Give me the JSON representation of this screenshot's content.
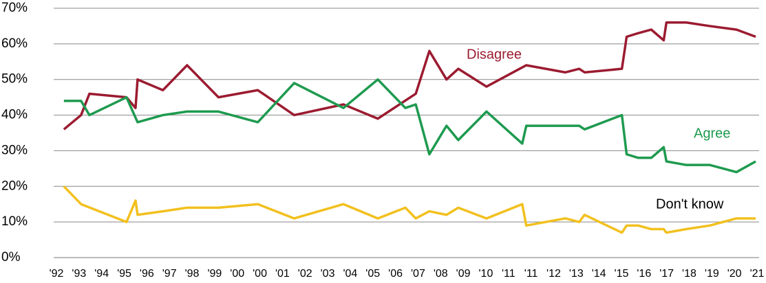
{
  "chart_data": {
    "type": "line",
    "series": [
      {
        "name": "Disagree",
        "color": "#9b1b30",
        "x": [
          0.33,
          1.09,
          1.46,
          3.1,
          3.5,
          3.59,
          4.71,
          5.78,
          7.17,
          8.91,
          10.52,
          12.7,
          14.22,
          15.9,
          16.5,
          17.26,
          17.78,
          19.03,
          20.79,
          22.52,
          23.13,
          23.37,
          25.02,
          25.23,
          25.74,
          26.32,
          26.87,
          26.99,
          27.87,
          28.91,
          30.09,
          30.94
        ],
        "values": [
          36,
          40,
          46,
          45,
          42,
          50,
          47,
          54,
          45,
          47,
          40,
          43,
          39,
          46,
          58,
          50,
          53,
          48,
          54,
          52,
          53,
          52,
          53,
          62,
          63,
          64,
          61,
          66,
          66,
          65,
          64,
          62
        ]
      },
      {
        "name": "Agree",
        "color": "#1e9a4f",
        "x": [
          0.33,
          1.09,
          1.46,
          3.1,
          3.59,
          4.71,
          5.78,
          7.17,
          8.91,
          10.52,
          12.7,
          14.22,
          15.44,
          15.9,
          16.5,
          17.26,
          17.78,
          19.03,
          20.61,
          20.79,
          23.13,
          23.37,
          25.02,
          25.23,
          25.74,
          26.32,
          26.87,
          26.99,
          27.87,
          28.91,
          30.09,
          30.94
        ],
        "values": [
          44,
          44,
          40,
          45,
          38,
          40,
          41,
          41,
          38,
          49,
          42,
          50,
          42,
          43,
          29,
          37,
          33,
          41,
          32,
          37,
          37,
          36,
          40,
          29,
          28,
          28,
          31,
          27,
          26,
          26,
          24,
          27
        ]
      },
      {
        "name": "Don't know",
        "color": "#f2c01e",
        "x": [
          0.33,
          1.09,
          3.1,
          3.5,
          3.59,
          4.71,
          5.78,
          7.17,
          8.91,
          10.52,
          12.7,
          14.22,
          15.44,
          15.9,
          16.5,
          17.26,
          17.78,
          19.03,
          20.61,
          20.79,
          22.52,
          23.13,
          23.37,
          25.02,
          25.23,
          25.74,
          26.32,
          26.87,
          26.99,
          27.87,
          28.91,
          30.09,
          30.94
        ],
        "values": [
          20,
          15,
          10,
          16,
          12,
          13,
          14,
          14,
          15,
          11,
          15,
          11,
          14,
          11,
          13,
          12,
          14,
          11,
          15,
          9,
          11,
          10,
          12,
          7,
          9,
          9,
          8,
          8,
          7,
          8,
          9,
          11,
          11
        ]
      }
    ],
    "xlim": [
      0,
      31
    ],
    "xticks": [
      {
        "value": 0,
        "label": "'92"
      },
      {
        "value": 1,
        "label": "'93"
      },
      {
        "value": 2,
        "label": "'94"
      },
      {
        "value": 3,
        "label": "'95"
      },
      {
        "value": 4,
        "label": "'96"
      },
      {
        "value": 5,
        "label": "'97"
      },
      {
        "value": 6,
        "label": "'98"
      },
      {
        "value": 7,
        "label": "'99"
      },
      {
        "value": 8,
        "label": "'00"
      },
      {
        "value": 9,
        "label": "'00"
      },
      {
        "value": 10,
        "label": "'01"
      },
      {
        "value": 11,
        "label": "'02"
      },
      {
        "value": 12,
        "label": "'03"
      },
      {
        "value": 13,
        "label": "'04"
      },
      {
        "value": 14,
        "label": "'05"
      },
      {
        "value": 15,
        "label": "'06"
      },
      {
        "value": 16,
        "label": "'07"
      },
      {
        "value": 17,
        "label": "'08"
      },
      {
        "value": 18,
        "label": "'09"
      },
      {
        "value": 19,
        "label": "'10"
      },
      {
        "value": 20,
        "label": "'11"
      },
      {
        "value": 21,
        "label": "'11"
      },
      {
        "value": 22,
        "label": "'12"
      },
      {
        "value": 23,
        "label": "'13"
      },
      {
        "value": 24,
        "label": "'14"
      },
      {
        "value": 25,
        "label": "'15"
      },
      {
        "value": 26,
        "label": "'16"
      },
      {
        "value": 27,
        "label": "'17"
      },
      {
        "value": 28,
        "label": "'18"
      },
      {
        "value": 29,
        "label": "'19"
      },
      {
        "value": 30,
        "label": "'20"
      },
      {
        "value": 31,
        "label": "'21"
      }
    ],
    "ylim": [
      0,
      70
    ],
    "yticks": [
      {
        "value": 0,
        "label": "0%"
      },
      {
        "value": 10,
        "label": "10%"
      },
      {
        "value": 20,
        "label": "20%"
      },
      {
        "value": 30,
        "label": "30%"
      },
      {
        "value": 40,
        "label": "40%"
      },
      {
        "value": 50,
        "label": "50%"
      },
      {
        "value": 60,
        "label": "60%"
      },
      {
        "value": 70,
        "label": "70%"
      }
    ],
    "grid": true
  }
}
